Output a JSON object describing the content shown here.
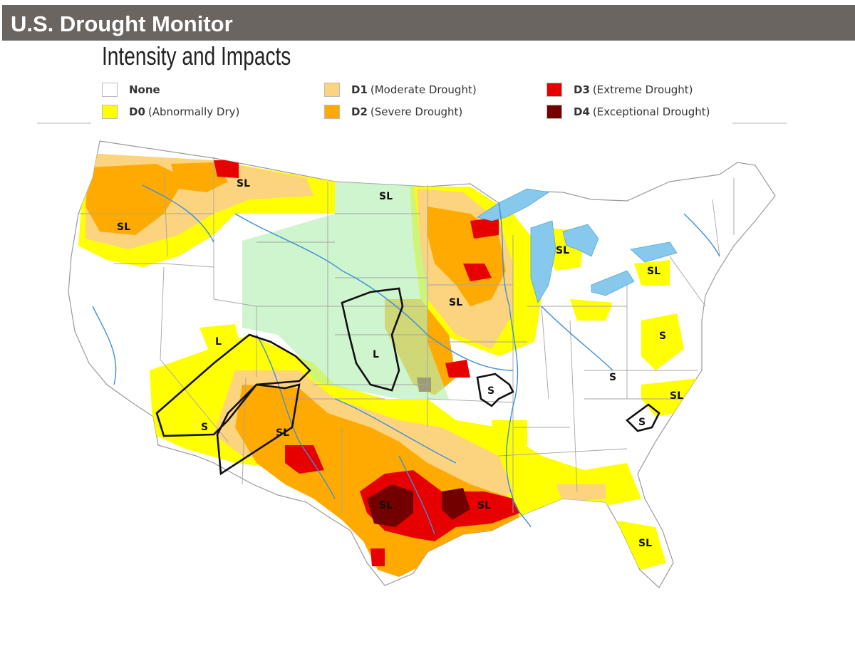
{
  "header": {
    "title": "U.S. Drought Monitor"
  },
  "subtitle": "Intensity and Impacts",
  "legend": [
    {
      "code": "None",
      "desc": "",
      "color": "#ffffff"
    },
    {
      "code": "D0",
      "desc": "(Abnormally Dry)",
      "color": "#ffff00"
    },
    {
      "code": "D1",
      "desc": "(Moderate Drought)",
      "color": "#fcd37f"
    },
    {
      "code": "D2",
      "desc": "(Severe Drought)",
      "color": "#ffaa00"
    },
    {
      "code": "D3",
      "desc": "(Extreme Drought)",
      "color": "#e60000"
    },
    {
      "code": "D4",
      "desc": "(Exceptional Drought)",
      "color": "#730000"
    }
  ],
  "impact_labels": [
    "SL",
    "SL",
    "SL",
    "L",
    "SL",
    "L",
    "SL",
    "S",
    "S",
    "SL",
    "S",
    "S",
    "SL",
    "SL",
    "S",
    "SL",
    "SL",
    "SL"
  ],
  "map_colors": {
    "water": "#86c9ec",
    "river": "#3d8fd9",
    "border": "#9a9a9a",
    "highlight": "#b6f0b6",
    "outline": "#111111"
  }
}
